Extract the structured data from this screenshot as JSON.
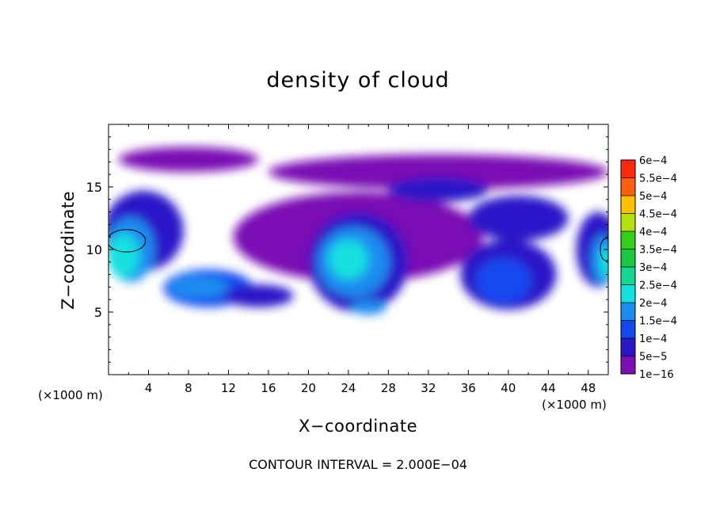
{
  "chart_data": {
    "type": "heatmap",
    "title": "density of cloud",
    "xlabel": "X−coordinate",
    "ylabel": "Z−coordinate",
    "x_unit_left": "(×1000 m)",
    "x_unit_right": "(×1000 m)",
    "xlim": [
      0,
      50
    ],
    "ylim": [
      0,
      20
    ],
    "x_ticks": [
      4,
      8,
      12,
      16,
      20,
      24,
      28,
      32,
      36,
      40,
      44,
      48
    ],
    "y_ticks": [
      5,
      10,
      15
    ],
    "colorbar": {
      "levels": [
        "1e−16",
        "5e−5",
        "1e−4",
        "1.5e−4",
        "2e−4",
        "2.5e−4",
        "3e−4",
        "3.5e−4",
        "4e−4",
        "4.5e−4",
        "5e−4",
        "5.5e−4",
        "6e−4"
      ],
      "colors": [
        "#7a10b4",
        "#2a18c8",
        "#1448f0",
        "#1c8cf0",
        "#14e0e0",
        "#14d890",
        "#18c840",
        "#34d018",
        "#b4e010",
        "#ffc000",
        "#ff6010",
        "#ff2810",
        "#ff9898"
      ]
    },
    "contour_interval": "CONTOUR INTERVAL = 2.000E−04",
    "blobs": [
      {
        "cx": 25,
        "cy": 11,
        "rx": 12.5,
        "ry": 3.6,
        "level": 0
      },
      {
        "cx": 8,
        "cy": 17.2,
        "rx": 7,
        "ry": 1.0,
        "level": 0
      },
      {
        "cx": 33,
        "cy": 16.2,
        "rx": 17,
        "ry": 1.4,
        "level": 0
      },
      {
        "cx": 3.5,
        "cy": 11.5,
        "rx": 4,
        "ry": 3.2,
        "level": 1
      },
      {
        "cx": 2.2,
        "cy": 10.0,
        "rx": 2.4,
        "ry": 2.6,
        "level": 3
      },
      {
        "cx": 1.5,
        "cy": 9.5,
        "rx": 1.6,
        "ry": 1.8,
        "level": 4
      },
      {
        "cx": 10,
        "cy": 6.9,
        "rx": 4.5,
        "ry": 1.5,
        "level": 2
      },
      {
        "cx": 9,
        "cy": 7.0,
        "rx": 3,
        "ry": 0.9,
        "level": 3
      },
      {
        "cx": 15,
        "cy": 6.3,
        "rx": 3.5,
        "ry": 0.9,
        "level": 1
      },
      {
        "cx": 25,
        "cy": 9.0,
        "rx": 5,
        "ry": 4.0,
        "level": 1
      },
      {
        "cx": 24.5,
        "cy": 9.0,
        "rx": 3.6,
        "ry": 2.8,
        "level": 3
      },
      {
        "cx": 24,
        "cy": 9.2,
        "rx": 2.0,
        "ry": 1.6,
        "level": 4
      },
      {
        "cx": 26,
        "cy": 5.4,
        "rx": 1.8,
        "ry": 0.6,
        "level": 3
      },
      {
        "cx": 33,
        "cy": 14.8,
        "rx": 5,
        "ry": 1.0,
        "level": 1
      },
      {
        "cx": 41,
        "cy": 12.5,
        "rx": 5,
        "ry": 1.8,
        "level": 1
      },
      {
        "cx": 40,
        "cy": 8.0,
        "rx": 4.8,
        "ry": 2.8,
        "level": 1
      },
      {
        "cx": 39.5,
        "cy": 7.5,
        "rx": 2.8,
        "ry": 1.8,
        "level": 2
      },
      {
        "cx": 49,
        "cy": 10.0,
        "rx": 2.2,
        "ry": 3.0,
        "level": 1
      },
      {
        "cx": 49.5,
        "cy": 9.2,
        "rx": 1.2,
        "ry": 2.0,
        "level": 3
      },
      {
        "cx": 49.8,
        "cy": 9.0,
        "rx": 0.7,
        "ry": 1.3,
        "level": 4
      }
    ]
  }
}
